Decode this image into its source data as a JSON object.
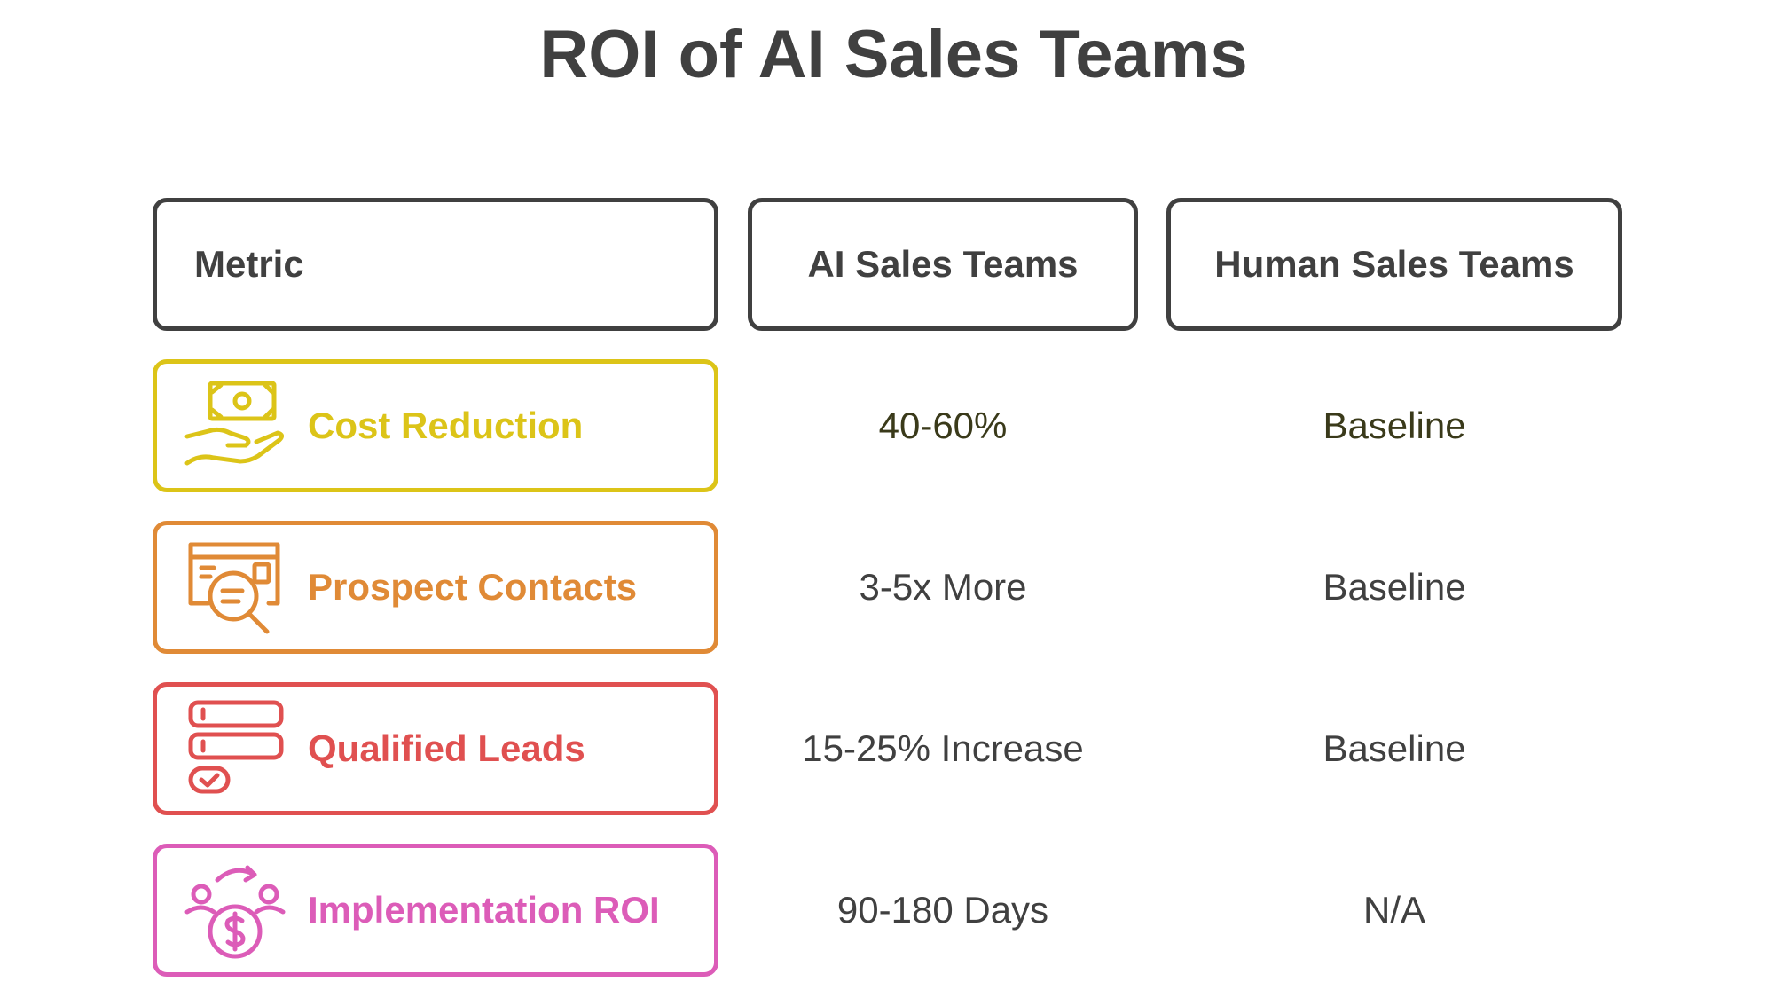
{
  "title": "ROI of AI Sales Teams",
  "headers": {
    "metric": "Metric",
    "ai": "AI Sales Teams",
    "human": "Human Sales Teams"
  },
  "rows": [
    {
      "metric": "Cost Reduction",
      "icon": "cash-in-hand-icon",
      "color": "#dcc418",
      "ai": "40-60%",
      "human": "Baseline",
      "value_color": "#3a3a1a"
    },
    {
      "metric": "Prospect Contacts",
      "icon": "document-search-icon",
      "color": "#e08a36",
      "ai": "3-5x More",
      "human": "Baseline",
      "value_color": "#404040"
    },
    {
      "metric": "Qualified Leads",
      "icon": "checklist-stack-icon",
      "color": "#e05050",
      "ai": "15-25% Increase",
      "human": "Baseline",
      "value_color": "#404040"
    },
    {
      "metric": "Implementation ROI",
      "icon": "money-cycle-icon",
      "color": "#dc5cb8",
      "ai": "90-180 Days",
      "human": "N/A",
      "value_color": "#404040"
    }
  ]
}
